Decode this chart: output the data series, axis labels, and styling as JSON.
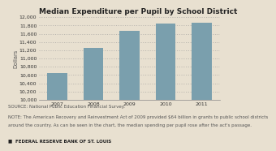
{
  "title": "Median Expenditure per Pupil by School District",
  "categories": [
    "2007",
    "2008",
    "2009",
    "2010",
    "2011"
  ],
  "values": [
    10650,
    11250,
    11670,
    11855,
    11875
  ],
  "bar_color": "#7a9fad",
  "ylim": [
    10000,
    12000
  ],
  "yticks": [
    10000,
    10200,
    10400,
    10600,
    10800,
    11000,
    11200,
    11400,
    11600,
    11800,
    12000
  ],
  "ylabel": "Dollars",
  "source_text": "SOURCE: National Public Education Financial Survey.",
  "note_line1": "NOTE: The American Recovery and Reinvestment Act of 2009 provided $64 billion in grants to public school districts",
  "note_line2": "around the country. As can be seen in the chart, the median spending per pupil rose after the act's passage.",
  "footer_text": "■  FEDERAL RESERVE BANK OF ST. LOUIS",
  "background_color": "#e8e0d0",
  "title_fontsize": 6.5,
  "axis_label_fontsize": 4.8,
  "tick_fontsize": 4.5,
  "note_fontsize": 4.0,
  "footer_fontsize": 4.0
}
